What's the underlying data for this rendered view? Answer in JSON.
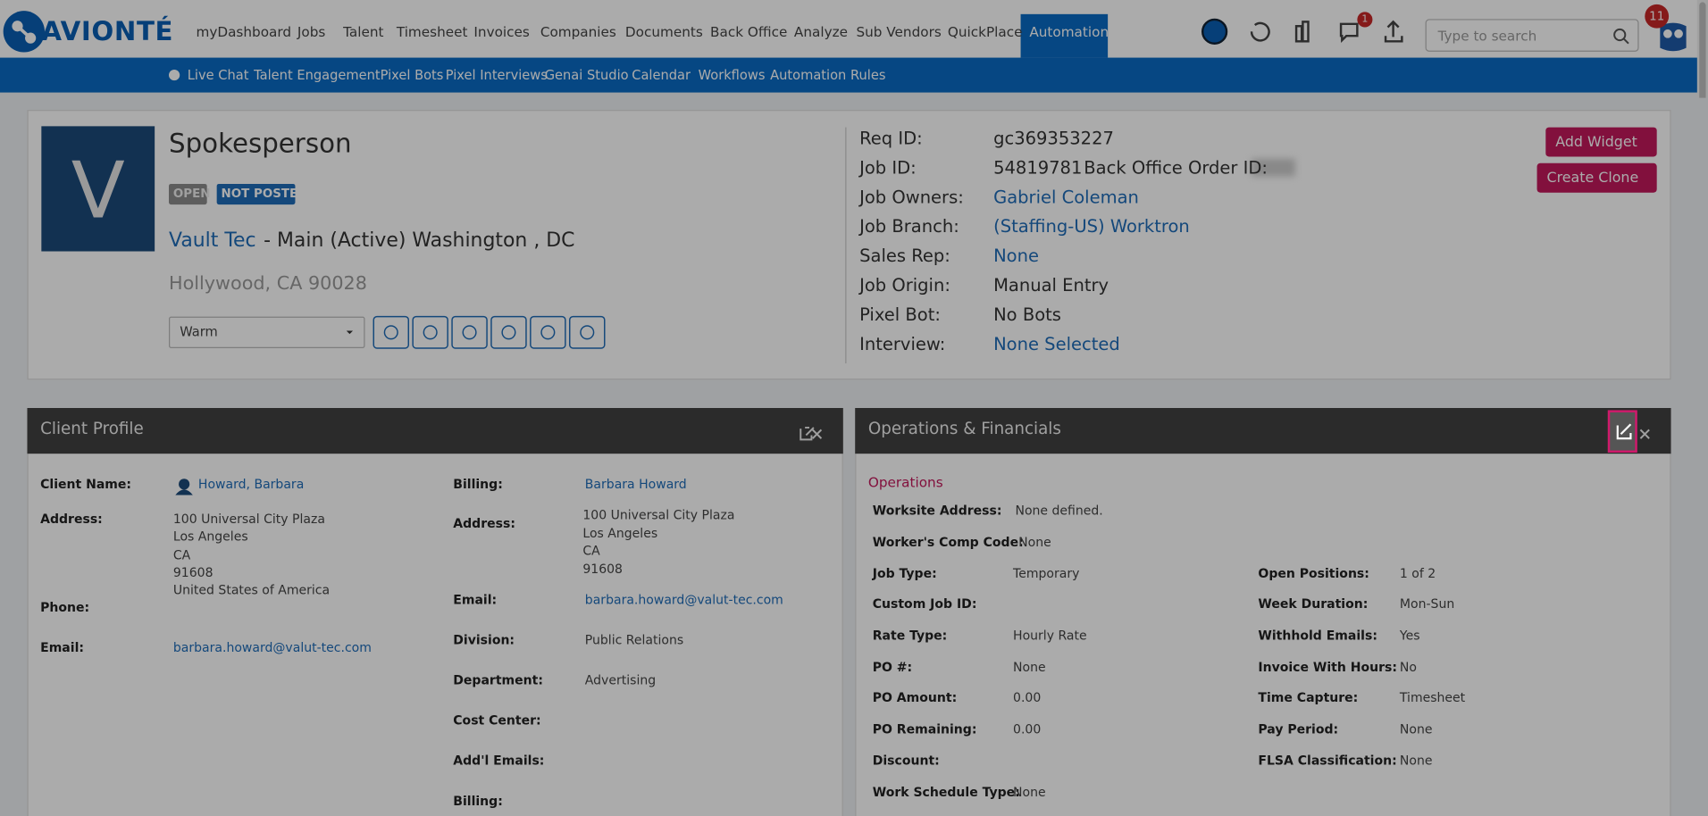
{
  "header": {
    "logo": "AVIONTÉ",
    "nav": [
      "myDashboard",
      "Jobs",
      "Talent",
      "Timesheet",
      "Invoices",
      "Companies",
      "Documents",
      "Back Office",
      "Analyze",
      "Sub Vendors",
      "QuickPlace",
      "Automation"
    ],
    "notification_count": "1",
    "search_placeholder": "Type to search",
    "user_badge": "11"
  },
  "subnav": [
    "Live Chat",
    "Talent Engagement",
    "Pixel Bots",
    "Pixel Interviews",
    "Genai Studio",
    "Calendar",
    "Workflows",
    "Automation Rules"
  ],
  "job": {
    "avatar_letter": "V",
    "title": "Spokesperson",
    "status_tags": [
      "OPEN",
      "NOT POSTED"
    ],
    "company": "Vault Tec",
    "location": "- Main (Active) Washington , DC",
    "address": "Hollywood, CA 90028",
    "temperature": "Warm",
    "fields": [
      {
        "label": "Req ID:",
        "value": "gc369353227"
      },
      {
        "label": "Job ID:",
        "value": "54819781"
      },
      {
        "label": "Job Owners:",
        "value": "Gabriel Coleman"
      },
      {
        "label": "Job Branch:",
        "value": "(Staffing-US) Worktron"
      },
      {
        "label": "Sales Rep:",
        "value": "None"
      },
      {
        "label": "Job Origin:",
        "value": "Manual Entry"
      },
      {
        "label": "Pixel Bot:",
        "value": "No Bots"
      },
      {
        "label": "Interview:",
        "value": "None Selected"
      }
    ],
    "back_office_order_label": "Back Office Order ID:",
    "buttons": [
      "Add Widget",
      "Create Clone"
    ]
  },
  "client_profile": {
    "title": "Client Profile",
    "left": [
      {
        "label": "Client Name:",
        "value": "Howard, Barbara"
      },
      {
        "label": "Address:",
        "lines": [
          "100 Universal City Plaza",
          "Los Angeles",
          "CA",
          "91608",
          "United States of America"
        ]
      },
      {
        "label": "Phone:"
      },
      {
        "label": "Email:",
        "value": "barbara.howard@valut-tec.com"
      }
    ],
    "right": [
      {
        "label": "Billing:",
        "value": "Barbara Howard"
      },
      {
        "label": "Address:",
        "lines": [
          "100 Universal City Plaza",
          "Los Angeles",
          "CA",
          "91608"
        ]
      },
      {
        "label": "Email:",
        "value": "barbara.howard@valut-tec.com"
      },
      {
        "label": "Division:",
        "value": "Public Relations"
      },
      {
        "label": "Department:",
        "value": "Advertising"
      },
      {
        "label": "Cost Center:"
      },
      {
        "label": "Add'l Emails:"
      },
      {
        "label": "Billing:"
      }
    ]
  },
  "operations": {
    "title": "Operations & Financials",
    "section": "Operations",
    "left": [
      {
        "label": "Worksite Address:",
        "value": "None defined."
      },
      {
        "label": "Worker's Comp Code:",
        "value": "None"
      },
      {
        "label": "Job Type:",
        "value": "Temporary"
      },
      {
        "label": "Custom Job ID:"
      },
      {
        "label": "Rate Type:",
        "value": "Hourly Rate"
      },
      {
        "label": "PO #:",
        "value": "None"
      },
      {
        "label": "PO Amount:",
        "value": "0.00"
      },
      {
        "label": "PO Remaining:",
        "value": "0.00"
      },
      {
        "label": "Discount:"
      },
      {
        "label": "Work Schedule Type:",
        "value": "None"
      }
    ],
    "right": [
      {
        "label": "Open Positions:",
        "value": "1 of 2"
      },
      {
        "label": "Week Duration:",
        "value": "Mon-Sun"
      },
      {
        "label": "Withhold Emails:",
        "value": "Yes"
      },
      {
        "label": "Invoice With Hours:",
        "value": "No"
      },
      {
        "label": "Time Capture:",
        "value": "Timesheet"
      },
      {
        "label": "Pay Period:",
        "value": "None"
      },
      {
        "label": "FLSA Classification:",
        "value": "None"
      }
    ]
  }
}
